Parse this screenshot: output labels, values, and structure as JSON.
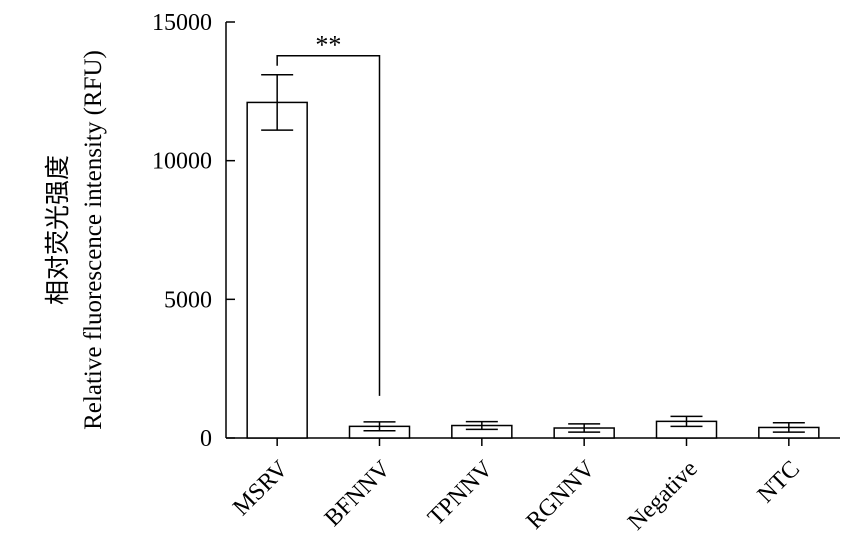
{
  "chart_data": {
    "type": "bar",
    "categories": [
      "MSRV",
      "BFNNV",
      "TPNNV",
      "RGNNV",
      "Negative",
      "NTC"
    ],
    "values": [
      12100,
      420,
      450,
      360,
      600,
      380
    ],
    "errors": [
      1000,
      160,
      140,
      150,
      180,
      170
    ],
    "ylabel_cn": "相对荧光强度",
    "ylabel": "Relative fluorescence intensity (RFU)",
    "xlabel": "",
    "ylim": [
      0,
      15000
    ],
    "yticks": [
      0,
      5000,
      10000,
      15000
    ],
    "ytick_labels": [
      "0",
      "5000",
      "10000",
      "15000"
    ],
    "grid": false,
    "bar_fill": "#ffffff",
    "bar_stroke": "#000000",
    "significance": {
      "from": "MSRV",
      "to": "BFNNV",
      "label": "**"
    }
  }
}
